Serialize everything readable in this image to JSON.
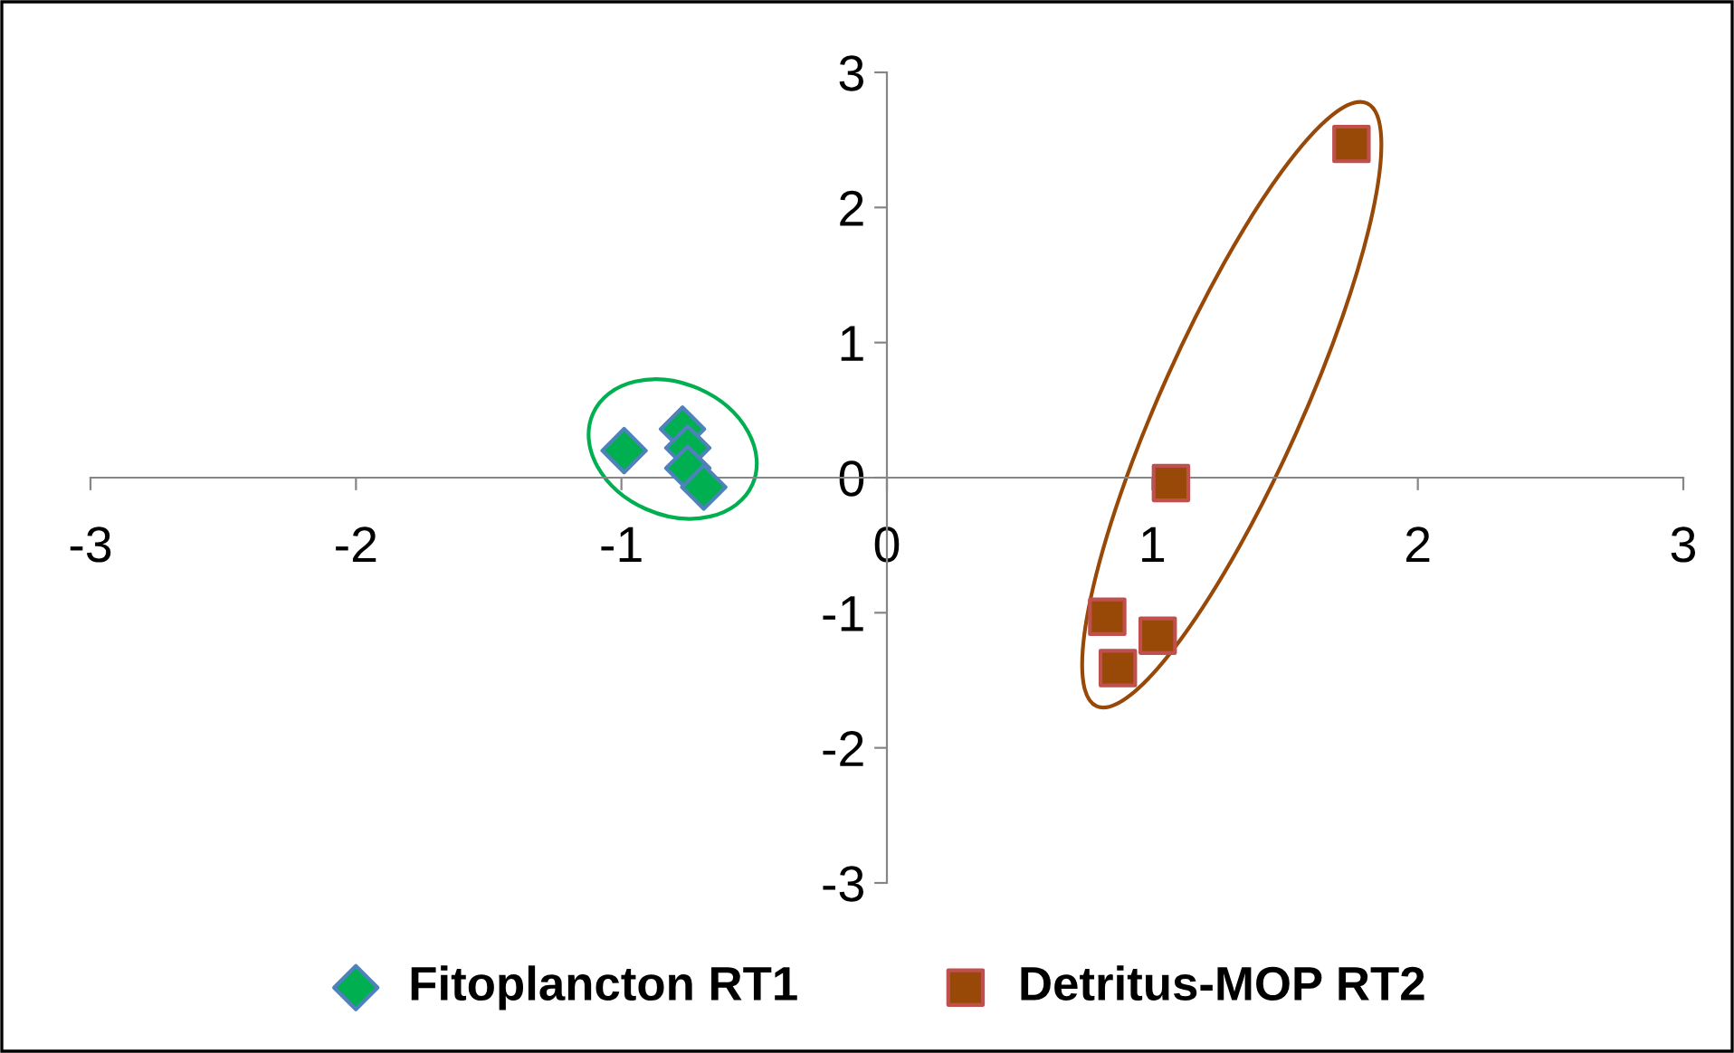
{
  "chart_data": {
    "type": "scatter",
    "xlim": [
      -3,
      3
    ],
    "ylim": [
      -3,
      3
    ],
    "xticks": [
      -3,
      -2,
      -1,
      0,
      1,
      2,
      3
    ],
    "yticks": [
      -3,
      -2,
      -1,
      0,
      1,
      2,
      3
    ],
    "grid": false,
    "legend": "bottom",
    "series": [
      {
        "name": "Fitoplancton RT1",
        "color": "#00b050",
        "marker": "diamond",
        "x": [
          -0.99,
          -0.77,
          -0.75,
          -0.75,
          -0.69
        ],
        "values": [
          0.2,
          0.36,
          0.22,
          0.07,
          -0.07
        ]
      },
      {
        "name": "Detritus-MOP RT2",
        "color": "#984807",
        "marker": "square",
        "x": [
          1.75,
          1.07,
          0.83,
          1.02,
          0.87
        ],
        "values": [
          2.47,
          -0.04,
          -1.03,
          -1.17,
          -1.41
        ]
      }
    ]
  }
}
